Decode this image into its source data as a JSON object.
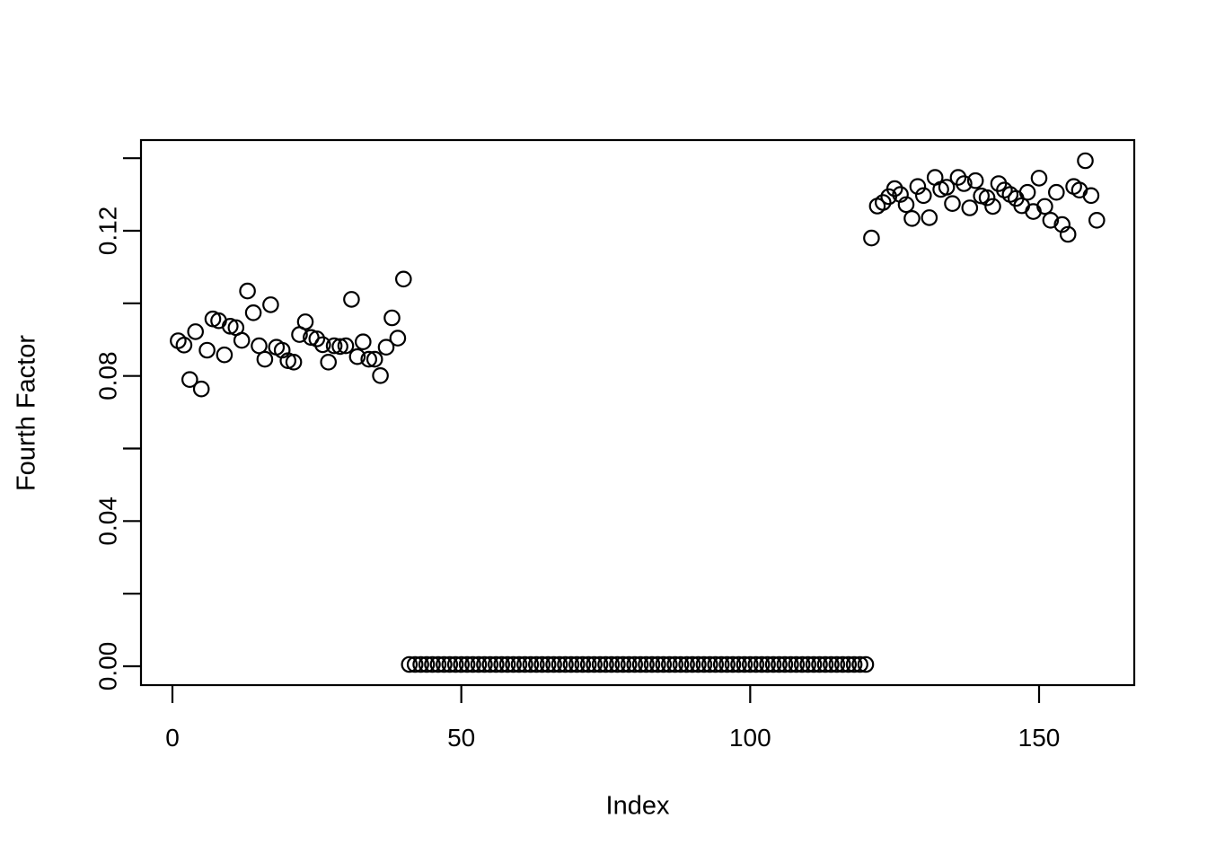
{
  "figure": {
    "background_color": "#ffffff",
    "foreground_color": "#000000"
  },
  "chart_data": {
    "type": "scatter",
    "title": "",
    "xlabel": "Index",
    "ylabel": "Fourth Factor",
    "marker": "open-circle",
    "grid": false,
    "legend": null,
    "x_description": "observation index, 1 to 160 (x = position in values array + 1)",
    "x_start": 1,
    "n_points": 160,
    "values": [
      0.0897,
      0.0885,
      0.079,
      0.0922,
      0.0764,
      0.0871,
      0.0957,
      0.0952,
      0.0858,
      0.0937,
      0.0933,
      0.0898,
      0.1034,
      0.0974,
      0.0883,
      0.0846,
      0.0996,
      0.0879,
      0.0871,
      0.0842,
      0.0838,
      0.0914,
      0.0949,
      0.0906,
      0.0902,
      0.0886,
      0.0838,
      0.0883,
      0.0881,
      0.0883,
      0.1011,
      0.0853,
      0.0894,
      0.0846,
      0.0846,
      0.0801,
      0.0879,
      0.096,
      0.0904,
      0.1067,
      0.0005,
      0.0005,
      0.0005,
      0.0005,
      0.0005,
      0.0005,
      0.0005,
      0.0005,
      0.0005,
      0.0005,
      0.0005,
      0.0005,
      0.0005,
      0.0005,
      0.0005,
      0.0005,
      0.0005,
      0.0005,
      0.0005,
      0.0005,
      0.0005,
      0.0005,
      0.0005,
      0.0005,
      0.0005,
      0.0005,
      0.0005,
      0.0005,
      0.0005,
      0.0005,
      0.0005,
      0.0005,
      0.0005,
      0.0005,
      0.0005,
      0.0005,
      0.0005,
      0.0005,
      0.0005,
      0.0005,
      0.0005,
      0.0005,
      0.0005,
      0.0005,
      0.0005,
      0.0005,
      0.0005,
      0.0005,
      0.0005,
      0.0005,
      0.0005,
      0.0005,
      0.0005,
      0.0005,
      0.0005,
      0.0005,
      0.0005,
      0.0005,
      0.0005,
      0.0005,
      0.0005,
      0.0005,
      0.0005,
      0.0005,
      0.0005,
      0.0005,
      0.0005,
      0.0005,
      0.0005,
      0.0005,
      0.0005,
      0.0005,
      0.0005,
      0.0005,
      0.0005,
      0.0005,
      0.0005,
      0.0005,
      0.0005,
      0.0005,
      0.118,
      0.1268,
      0.1278,
      0.1294,
      0.1316,
      0.13,
      0.1272,
      0.1234,
      0.1322,
      0.1297,
      0.1236,
      0.1347,
      0.1314,
      0.132,
      0.1275,
      0.1347,
      0.133,
      0.1263,
      0.1338,
      0.1296,
      0.1291,
      0.1267,
      0.133,
      0.1312,
      0.13,
      0.1289,
      0.1269,
      0.1306,
      0.1253,
      0.1345,
      0.1267,
      0.1229,
      0.1306,
      0.1217,
      0.119,
      0.1322,
      0.1312,
      0.1393,
      0.1297,
      0.1229
    ],
    "xlim": [
      -5.4,
      166.5
    ],
    "ylim": [
      -0.0052,
      0.145
    ],
    "x_ticks": {
      "positions": [
        0,
        50,
        100,
        150
      ],
      "labels": [
        "0",
        "50",
        "100",
        "150"
      ]
    },
    "y_ticks": {
      "positions": [
        0.0,
        0.02,
        0.04,
        0.06,
        0.08,
        0.1,
        0.12,
        0.14
      ],
      "labels": [
        "0.00",
        "",
        "0.04",
        "",
        "0.08",
        "",
        "0.12",
        ""
      ]
    },
    "point_style": {
      "shape": "open-circle",
      "radius_px": 8.2,
      "stroke_px": 2.2,
      "color": "#000000"
    }
  }
}
